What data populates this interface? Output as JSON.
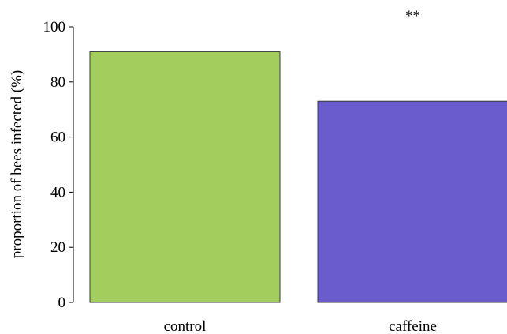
{
  "chart_data": {
    "type": "bar",
    "title": "",
    "xlabel": "",
    "ylabel": "proportion of bees infected (%)",
    "categories": [
      "control",
      "caffeine"
    ],
    "values": [
      91,
      73
    ],
    "colors": [
      "#a3cd5c",
      "#6a5ccd"
    ],
    "ylim": [
      0,
      100
    ],
    "yticks": [
      "0",
      "20",
      "40",
      "60",
      "80",
      "100"
    ],
    "annotations": [
      {
        "category": "caffeine",
        "text": "**"
      }
    ],
    "grid": false,
    "legend": "none"
  }
}
